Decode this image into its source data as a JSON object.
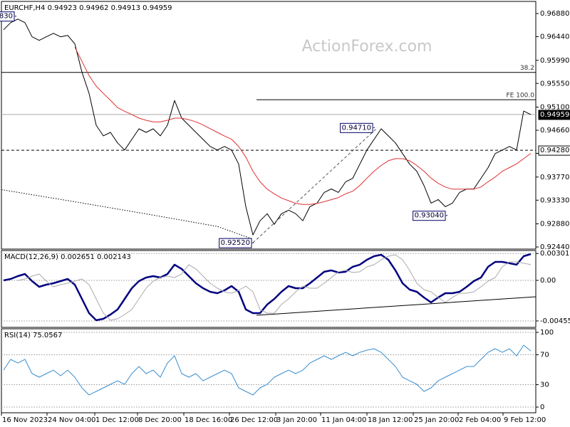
{
  "chart_data": [
    {
      "type": "line",
      "title": "EURCHF,H4 0.94923 0.94962 0.94913 0.94959",
      "watermark": "ActionForex.com",
      "xlim": [
        -0.3,
        74.7
      ],
      "ylim": [
        0.924,
        0.9711
      ],
      "yticks": [
        {
          "value": 0.9688,
          "label": "0.96880"
        },
        {
          "value": 0.9644,
          "label": "0.96440"
        },
        {
          "value": 0.9599,
          "label": "0.95990"
        },
        {
          "value": 0.9555,
          "label": "0.95550"
        },
        {
          "value": 0.951,
          "label": "0.95100"
        },
        {
          "value": 0.9466,
          "label": "0.94660"
        },
        {
          "value": 0.9422,
          "label": "0.94220"
        },
        {
          "value": 0.9377,
          "label": "0.93770"
        },
        {
          "value": 0.9333,
          "label": "0.93330"
        },
        {
          "value": 0.9288,
          "label": "0.92880"
        },
        {
          "value": 0.9244,
          "label": "0.92440"
        }
      ],
      "series": [
        {
          "color": "#000000",
          "values": [
            0.96572,
            0.96706,
            0.96774,
            0.96706,
            0.96437,
            0.9637,
            0.96437,
            0.96504,
            0.96437,
            0.96464,
            0.96303,
            0.95764,
            0.95361,
            0.94755,
            0.94553,
            0.9462,
            0.94419,
            0.94284,
            0.94486,
            0.94688,
            0.9462,
            0.94688,
            0.94553,
            0.94755,
            0.95226,
            0.9489,
            0.94755,
            0.9462,
            0.94486,
            0.94351,
            0.94284,
            0.94351,
            0.94284,
            0.94015,
            0.93207,
            0.92669,
            0.92938,
            0.93073,
            0.92871,
            0.93073,
            0.9314,
            0.93073,
            0.92938,
            0.93207,
            0.93275,
            0.93477,
            0.93544,
            0.93477,
            0.93678,
            0.93746,
            0.94015,
            0.94284,
            0.94486,
            0.94688,
            0.94553,
            0.94419,
            0.94217,
            0.94015,
            0.9388,
            0.93611,
            0.93275,
            0.93342,
            0.93207,
            0.93275,
            0.93477,
            0.93544,
            0.93544,
            0.93746,
            0.93948,
            0.94217,
            0.94284,
            0.94351,
            0.94284,
            0.95024,
            0.94959
          ]
        },
        {
          "color": "#e03030",
          "values": [
            null,
            null,
            null,
            null,
            null,
            null,
            null,
            null,
            null,
            null,
            0.9624,
            0.9597,
            0.957,
            0.955,
            0.9536,
            0.9523,
            0.9509,
            0.9502,
            0.9496,
            0.9489,
            0.9485,
            0.9482,
            0.9482,
            0.9485,
            0.9489,
            0.9489,
            0.9486,
            0.9482,
            0.9476,
            0.9469,
            0.9462,
            0.9455,
            0.9449,
            0.9435,
            0.9415,
            0.9388,
            0.9368,
            0.9354,
            0.9345,
            0.9337,
            0.9332,
            0.9327,
            0.9325,
            0.9325,
            0.9327,
            0.933,
            0.9334,
            0.9338,
            0.9345,
            0.935,
            0.9361,
            0.9375,
            0.9388,
            0.9399,
            0.9408,
            0.9412,
            0.9412,
            0.9408,
            0.9399,
            0.9388,
            0.9375,
            0.9365,
            0.9358,
            0.9354,
            0.9354,
            0.9354,
            0.9354,
            0.9358,
            0.9368,
            0.9377,
            0.9388,
            0.9395,
            0.9402,
            0.9412,
            0.9422
          ]
        },
        {
          "color": "#000000",
          "style": "dotted",
          "x": [
            -0.3,
            10,
            20,
            30,
            35
          ],
          "values": [
            0.9353,
            0.933,
            0.9307,
            0.9283,
            0.9259
          ]
        },
        {
          "color": "#555555",
          "style": "dashed",
          "x": [
            35,
            52.5
          ],
          "values": [
            0.9252,
            0.9471
          ]
        }
      ],
      "levels": [
        {
          "value": 0.9576,
          "label": "38.2",
          "color": "#000000"
        },
        {
          "value": 0.9524,
          "label": "FE 100.0",
          "color": "#000000",
          "from": 35.5
        },
        {
          "value": 0.9428,
          "label": "0.94280",
          "color": "#000000",
          "style": "dashed",
          "box": "outline"
        },
        {
          "value": 0.94959,
          "label": "0.94959",
          "color": "#aaaaaa",
          "box": "filled"
        }
      ],
      "annotations": [
        {
          "value": 0.9683,
          "label": "830",
          "x": 1.7
        },
        {
          "value": 0.9252,
          "label": "0.92520",
          "x": 35
        },
        {
          "value": 0.9471,
          "label": "0.94710",
          "x": 52
        },
        {
          "value": 0.9304,
          "label": "0.93040",
          "x": 62.2
        }
      ]
    },
    {
      "type": "line",
      "title": "MACD(12,26,9) 0.002651 0.002143",
      "xlim": [
        -0.3,
        74.7
      ],
      "ylim": [
        -0.00527,
        0.00335
      ],
      "grid": true,
      "yticks": [
        {
          "value": 0.003013,
          "label": "0.003013"
        },
        {
          "value": 0,
          "label": "0.00"
        },
        {
          "value": -0.00455,
          "label": "-0.00455"
        }
      ],
      "series": [
        {
          "color": "#00007f",
          "style": "bold",
          "values": [
            0,
            0.00016,
            0.00048,
            0.00072,
            -8e-05,
            -0.00072,
            -0.00048,
            -0.00032,
            -8e-05,
            0.00016,
            -0.00048,
            -0.00208,
            -0.00367,
            -0.00447,
            -0.00431,
            -0.00383,
            -0.00327,
            -0.00208,
            -0.00088,
            -8e-05,
            0.00032,
            0.00048,
            0.00032,
            0.00072,
            0.00176,
            0.00128,
            0.00048,
            -0.00032,
            -0.00088,
            -0.00128,
            -0.00144,
            -0.00112,
            -0.00064,
            -0.00128,
            -0.00327,
            -0.00367,
            -0.00367,
            -0.00271,
            -0.00208,
            -0.00128,
            -0.00064,
            -0.00088,
            -0.00088,
            -0.00032,
            0.00032,
            0.00096,
            0.00112,
            0.00088,
            0.00096,
            0.00152,
            0.00176,
            0.00231,
            0.00271,
            0.00287,
            0.00231,
            0.00112,
            -0.00032,
            -0.00104,
            -0.00128,
            -0.00192,
            -0.00247,
            -0.00192,
            -0.00144,
            -0.00144,
            -0.00128,
            -0.00072,
            -8e-05,
            0.00032,
            0.00152,
            0.00207,
            0.00207,
            0.00192,
            0.00176,
            0.00271,
            0.00295
          ]
        },
        {
          "color": "#aaaaaa",
          "values": [
            null,
            null,
            0,
            0.00016,
            0.00048,
            0.00072,
            -8e-05,
            -0.00072,
            -0.00048,
            -0.00032,
            -8e-05,
            0.00016,
            -0.00048,
            -0.00208,
            -0.00367,
            -0.00447,
            -0.00431,
            -0.00383,
            -0.00327,
            -0.00208,
            -0.00088,
            -8e-05,
            0.00032,
            0.00048,
            0.00032,
            0.00072,
            0.00176,
            0.00128,
            0.00048,
            -0.00032,
            -0.00088,
            -0.00128,
            -0.00144,
            -0.00112,
            -0.00064,
            -0.00128,
            -0.00327,
            -0.00367,
            -0.00367,
            -0.00271,
            -0.00208,
            -0.00128,
            -0.00064,
            -0.00088,
            -0.00088,
            -0.00032,
            0.00032,
            0.00096,
            0.00112,
            0.00088,
            0.00096,
            0.00152,
            0.00176,
            0.00231,
            0.00271,
            0.00287,
            0.00231,
            0.00112,
            -0.00032,
            -0.00104,
            -0.00128,
            -0.00192,
            -0.00247,
            -0.00192,
            -0.00144,
            -0.00144,
            -0.00128,
            -0.00072,
            -8e-05,
            0.00032,
            0.00152,
            0.00207,
            0.00207,
            0.00192,
            0.00176
          ]
        },
        {
          "color": "#000000",
          "x": [
            35.5,
            74.7
          ],
          "values": [
            -0.00391,
            -0.00184
          ]
        }
      ]
    },
    {
      "type": "line",
      "title": "RSI(14) 75.0567",
      "xlim": [
        -0.3,
        74.7
      ],
      "ylim": [
        -7.6,
        104.8
      ],
      "grid": true,
      "yticks": [
        100,
        70,
        30,
        0
      ],
      "xticks": [
        {
          "value": -0.3,
          "label": "16 Nov 2023"
        },
        {
          "value": 6.1,
          "label": "24 Nov 04:00"
        },
        {
          "value": 12.8,
          "label": "1 Dec 12:00"
        },
        {
          "value": 18.8,
          "label": "8 Dec 20:00"
        },
        {
          "value": 25.3,
          "label": "18 Dec 16:00"
        },
        {
          "value": 31.7,
          "label": "26 Dec 12:00"
        },
        {
          "value": 38.2,
          "label": "3 Jan 20:00"
        },
        {
          "value": 44.5,
          "label": "11 Jan 04:00"
        },
        {
          "value": 51,
          "label": "18 Jan 12:00"
        },
        {
          "value": 57.5,
          "label": "25 Jan 20:00"
        },
        {
          "value": 63.8,
          "label": "2 Feb 04:00"
        },
        {
          "value": 70.1,
          "label": "9 Feb 12:00"
        }
      ],
      "series": [
        {
          "color": "#3a8fd0",
          "values": [
            49.5,
            63.8,
            59.0,
            63.8,
            44.8,
            40.0,
            44.8,
            49.5,
            41.9,
            49.5,
            40.0,
            25.7,
            16.2,
            21.0,
            25.7,
            30.5,
            35.2,
            30.5,
            44.8,
            54.3,
            44.8,
            49.5,
            40.0,
            59.0,
            68.6,
            44.8,
            40.0,
            44.8,
            35.2,
            40.0,
            44.8,
            49.5,
            44.8,
            25.7,
            21.0,
            16.2,
            25.7,
            30.5,
            40.0,
            44.8,
            49.5,
            44.8,
            49.5,
            59.0,
            63.8,
            68.6,
            63.8,
            68.6,
            73.3,
            68.6,
            73.3,
            76.2,
            78.1,
            73.3,
            63.8,
            54.3,
            40.0,
            35.2,
            30.5,
            21.0,
            25.7,
            35.2,
            40.0,
            44.8,
            49.5,
            54.3,
            54.3,
            63.8,
            73.3,
            78.1,
            73.3,
            78.1,
            68.6,
            82.9,
            75.1
          ]
        }
      ]
    }
  ]
}
